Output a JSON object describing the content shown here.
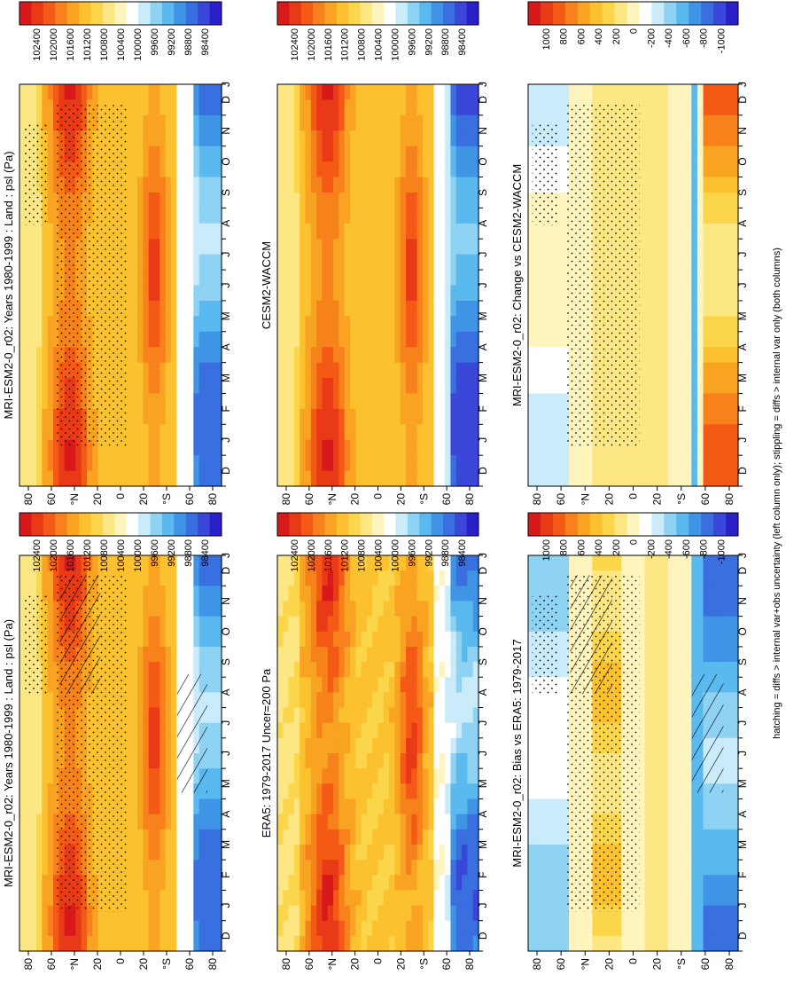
{
  "figure": {
    "footnote": "hatching = diffs > internal var+obs uncertainty (left column only); stippling = diffs > internal var only (both columns)"
  },
  "palettes": {
    "abs": [
      "#d7191c",
      "#e83a17",
      "#f45a16",
      "#f7821c",
      "#f9a323",
      "#fbc12f",
      "#fbd64a",
      "#fde684",
      "#fef4bd",
      "#ffffff",
      "#c9ebfa",
      "#8fd3f4",
      "#5ab9ef",
      "#3f94e5",
      "#3a6fe0",
      "#3a47d8",
      "#2a20c8"
    ],
    "diff": [
      "#d7191c",
      "#e83a17",
      "#f45a16",
      "#f7821c",
      "#f9a323",
      "#fbc12f",
      "#fbd64a",
      "#fde684",
      "#fef4bd",
      "#ffffff",
      "#c9ebfa",
      "#8fd3f4",
      "#5ab9ef",
      "#3f94e5",
      "#3a6fe0",
      "#3a47d8",
      "#2a20c8"
    ]
  },
  "chart_data": [
    {
      "type": "heatmap",
      "title": "MRI-ESM2-0_r02: Years 1980-1999 : Land : psl (Pa)",
      "scale": "abs",
      "months": [
        "D",
        "J",
        "F",
        "M",
        "A",
        "M",
        "J",
        "J",
        "A",
        "S",
        "O",
        "N",
        "D",
        "J"
      ],
      "lat_ticks": [
        "80",
        "60",
        "°N",
        "20",
        "0",
        "20",
        "°S",
        "60",
        "80"
      ],
      "colorbar_ticks": [
        "102400",
        "102000",
        "101600",
        "101200",
        "100800",
        "100400",
        "100000",
        "99600",
        "99200",
        "98800",
        "98400"
      ],
      "hatching": true,
      "stippling": true
    },
    {
      "type": "heatmap",
      "title": "MRI-ESM2-0_r02: Years 1980-1999 : Land : psl (Pa)",
      "scale": "abs",
      "months": [
        "D",
        "J",
        "F",
        "M",
        "A",
        "M",
        "J",
        "J",
        "A",
        "S",
        "O",
        "N",
        "D",
        "J"
      ],
      "lat_ticks": [
        "80",
        "60",
        "°N",
        "20",
        "0",
        "20",
        "°S",
        "60",
        "80"
      ],
      "colorbar_ticks": [
        "102400",
        "102000",
        "101600",
        "101200",
        "100800",
        "100400",
        "100000",
        "99600",
        "99200",
        "98800",
        "98400"
      ],
      "hatching": false,
      "stippling": true
    },
    {
      "type": "heatmap",
      "title": "ERA5: 1979-2017 Uncer=200 Pa",
      "scale": "abs",
      "months": [
        "D",
        "J",
        "F",
        "M",
        "A",
        "M",
        "J",
        "J",
        "A",
        "S",
        "O",
        "N",
        "D",
        "J"
      ],
      "lat_ticks": [
        "80",
        "60",
        "°N",
        "20",
        "0",
        "20",
        "°S",
        "60",
        "80"
      ],
      "colorbar_ticks": [
        "102400",
        "102000",
        "101600",
        "101200",
        "100800",
        "100400",
        "100000",
        "99600",
        "99200",
        "98800",
        "98400"
      ],
      "hatching": false,
      "stippling": false
    },
    {
      "type": "heatmap",
      "title": "CESM2-WACCM",
      "scale": "abs",
      "months": [
        "D",
        "J",
        "F",
        "M",
        "A",
        "M",
        "J",
        "J",
        "A",
        "S",
        "O",
        "N",
        "D",
        "J"
      ],
      "lat_ticks": [
        "80",
        "60",
        "°N",
        "20",
        "0",
        "20",
        "°S",
        "60",
        "80"
      ],
      "colorbar_ticks": [
        "102400",
        "102000",
        "101600",
        "101200",
        "100800",
        "100400",
        "100000",
        "99600",
        "99200",
        "98800",
        "98400"
      ],
      "hatching": false,
      "stippling": false
    },
    {
      "type": "heatmap",
      "title": "MRI-ESM2-0_r02: Bias vs ERA5: 1979-2017",
      "scale": "diff",
      "months": [
        "D",
        "J",
        "F",
        "M",
        "A",
        "M",
        "J",
        "J",
        "A",
        "S",
        "O",
        "N",
        "D",
        "J"
      ],
      "lat_ticks": [
        "80",
        "60",
        "°N",
        "20",
        "0",
        "20",
        "°S",
        "60",
        "80"
      ],
      "colorbar_ticks": [
        "1000",
        "800",
        "600",
        "400",
        "200",
        "0",
        "-200",
        "-400",
        "-600",
        "-800",
        "-1000"
      ],
      "hatching": true,
      "stippling": true
    },
    {
      "type": "heatmap",
      "title": "MRI-ESM2-0_r02: Change vs CESM2-WACCM",
      "scale": "diff",
      "months": [
        "D",
        "J",
        "F",
        "M",
        "A",
        "M",
        "J",
        "J",
        "A",
        "S",
        "O",
        "N",
        "D",
        "J"
      ],
      "lat_ticks": [
        "80",
        "60",
        "°N",
        "20",
        "0",
        "20",
        "°S",
        "60",
        "80"
      ],
      "colorbar_ticks": [
        "1000",
        "800",
        "600",
        "400",
        "200",
        "0",
        "-200",
        "-400",
        "-600",
        "-800",
        "-1000"
      ],
      "hatching": false,
      "stippling": true
    }
  ]
}
